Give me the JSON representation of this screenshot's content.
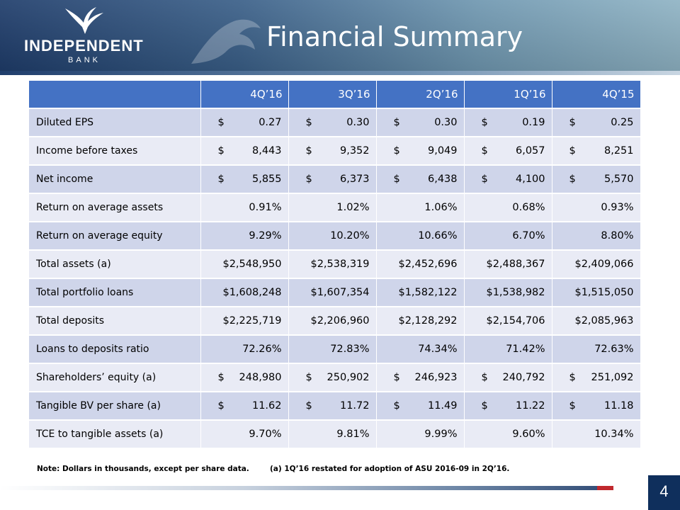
{
  "header": {
    "logo_name": "INDEPENDENT",
    "logo_sub": "BANK",
    "title": "Financial Summary"
  },
  "table": {
    "columns": [
      "4Q’16",
      "3Q’16",
      "2Q’16",
      "1Q’16",
      "4Q’15"
    ],
    "rows": [
      {
        "label": "Diluted EPS",
        "cells": [
          [
            "$",
            "0.27"
          ],
          [
            "$",
            "0.30"
          ],
          [
            "$",
            "0.30"
          ],
          [
            "$",
            "0.19"
          ],
          [
            "$",
            "0.25"
          ]
        ]
      },
      {
        "label": "Income before taxes",
        "cells": [
          [
            "$",
            "8,443"
          ],
          [
            "$",
            "9,352"
          ],
          [
            "$",
            "9,049"
          ],
          [
            "$",
            "6,057"
          ],
          [
            "$",
            "8,251"
          ]
        ]
      },
      {
        "label": "Net income",
        "cells": [
          [
            "$",
            "5,855"
          ],
          [
            "$",
            "6,373"
          ],
          [
            "$",
            "6,438"
          ],
          [
            "$",
            "4,100"
          ],
          [
            "$",
            "5,570"
          ]
        ]
      },
      {
        "label": "Return on average assets",
        "cells": [
          [
            "",
            "0.91%"
          ],
          [
            "",
            "1.02%"
          ],
          [
            "",
            "1.06%"
          ],
          [
            "",
            "0.68%"
          ],
          [
            "",
            "0.93%"
          ]
        ]
      },
      {
        "label": "Return on average equity",
        "cells": [
          [
            "",
            "9.29%"
          ],
          [
            "",
            "10.20%"
          ],
          [
            "",
            "10.66%"
          ],
          [
            "",
            "6.70%"
          ],
          [
            "",
            "8.80%"
          ]
        ]
      },
      {
        "label": "Total assets (a)",
        "cells": [
          [
            "",
            "$2,548,950"
          ],
          [
            "",
            "$2,538,319"
          ],
          [
            "",
            "$2,452,696"
          ],
          [
            "",
            "$2,488,367"
          ],
          [
            "",
            "$2,409,066"
          ]
        ]
      },
      {
        "label": "Total portfolio loans",
        "cells": [
          [
            "",
            "$1,608,248"
          ],
          [
            "",
            "$1,607,354"
          ],
          [
            "",
            "$1,582,122"
          ],
          [
            "",
            "$1,538,982"
          ],
          [
            "",
            "$1,515,050"
          ]
        ]
      },
      {
        "label": "Total deposits",
        "cells": [
          [
            "",
            "$2,225,719"
          ],
          [
            "",
            "$2,206,960"
          ],
          [
            "",
            "$2,128,292"
          ],
          [
            "",
            "$2,154,706"
          ],
          [
            "",
            "$2,085,963"
          ]
        ]
      },
      {
        "label": "Loans to deposits ratio",
        "cells": [
          [
            "",
            "72.26%"
          ],
          [
            "",
            "72.83%"
          ],
          [
            "",
            "74.34%"
          ],
          [
            "",
            "71.42%"
          ],
          [
            "",
            "72.63%"
          ]
        ]
      },
      {
        "label": "Shareholders’ equity (a)",
        "cells": [
          [
            "$",
            "248,980"
          ],
          [
            "$",
            "250,902"
          ],
          [
            "$",
            "246,923"
          ],
          [
            "$",
            "240,792"
          ],
          [
            "$",
            "251,092"
          ]
        ]
      },
      {
        "label": "Tangible BV per share (a)",
        "cells": [
          [
            "$",
            "11.62"
          ],
          [
            "$",
            "11.72"
          ],
          [
            "$",
            "11.49"
          ],
          [
            "$",
            "11.22"
          ],
          [
            "$",
            "11.18"
          ]
        ]
      },
      {
        "label": "TCE to tangible assets (a)",
        "cells": [
          [
            "",
            "9.70%"
          ],
          [
            "",
            "9.81%"
          ],
          [
            "",
            "9.99%"
          ],
          [
            "",
            "9.60%"
          ],
          [
            "",
            "10.34%"
          ]
        ]
      }
    ]
  },
  "notes": {
    "note1": "Note:  Dollars in thousands, except per share data.",
    "note2": "(a) 1Q’16 restated for adoption of ASU 2016-09 in 2Q’16."
  },
  "footer": {
    "page_number": "4"
  },
  "colors": {
    "header_dark": "#1f3d6b",
    "table_header": "#4472c4",
    "row_odd": "#cfd5ea",
    "row_even": "#e9ebf5",
    "accent_red": "#c0282d",
    "page_box": "#0f2f5c"
  }
}
